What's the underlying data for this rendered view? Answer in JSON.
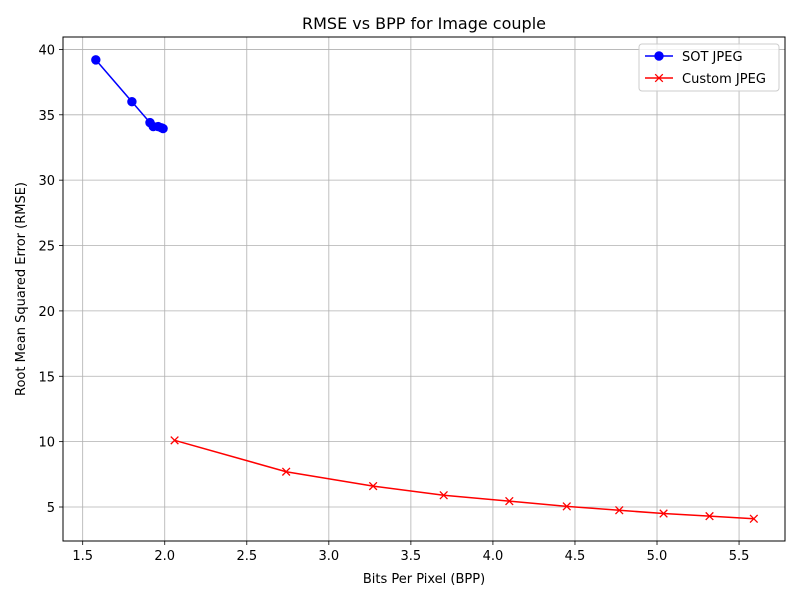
{
  "chart_data": {
    "type": "line",
    "title": "RMSE vs BPP for Image couple",
    "xlabel": "Bits Per Pixel (BPP)",
    "ylabel": "Root Mean Squared Error (RMSE)",
    "xlim": [
      1.38,
      5.78
    ],
    "ylim": [
      2.4,
      40.95
    ],
    "xticks": [
      1.5,
      2.0,
      2.5,
      3.0,
      3.5,
      4.0,
      4.5,
      5.0,
      5.5
    ],
    "xtick_labels": [
      "1.5",
      "2.0",
      "2.5",
      "3.0",
      "3.5",
      "4.0",
      "4.5",
      "5.0",
      "5.5"
    ],
    "yticks": [
      5,
      10,
      15,
      20,
      25,
      30,
      35,
      40
    ],
    "ytick_labels": [
      "5",
      "10",
      "15",
      "20",
      "25",
      "30",
      "35",
      "40"
    ],
    "grid": true,
    "legend_position": "top-right",
    "series": [
      {
        "name": "SOT JPEG",
        "color": "#0000ff",
        "marker": "circle",
        "x": [
          1.58,
          1.8,
          1.91,
          1.93,
          1.96,
          1.98,
          1.99
        ],
        "y": [
          39.2,
          36.0,
          34.4,
          34.1,
          34.1,
          34.0,
          33.95
        ]
      },
      {
        "name": "Custom JPEG",
        "color": "#ff0000",
        "marker": "x",
        "x": [
          2.06,
          2.74,
          3.27,
          3.7,
          4.1,
          4.45,
          4.77,
          5.04,
          5.32,
          5.59
        ],
        "y": [
          10.1,
          7.7,
          6.6,
          5.9,
          5.45,
          5.05,
          4.75,
          4.5,
          4.3,
          4.1
        ]
      }
    ]
  }
}
